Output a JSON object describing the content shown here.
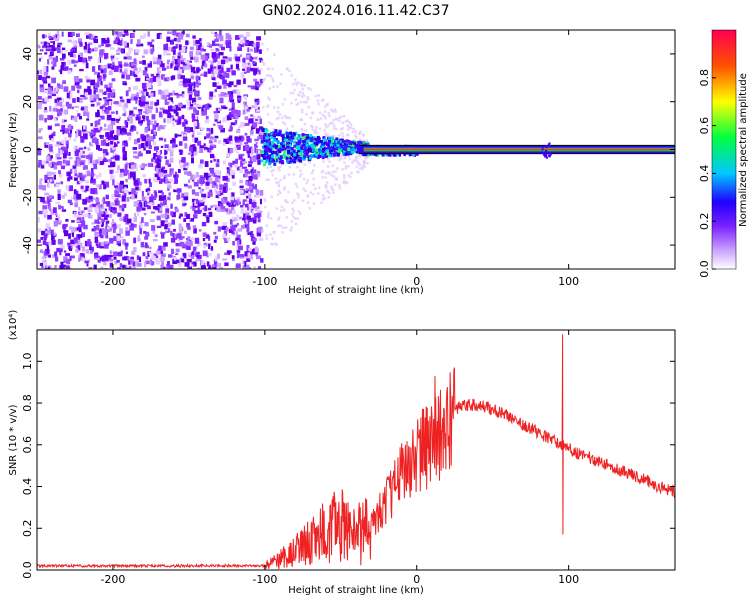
{
  "figure_title": "GN02.2024.016.11.42.C37",
  "chart_data": [
    {
      "type": "heatmap",
      "title": "GN02.2024.016.11.42.C37",
      "xlabel": "Height of straight line (km)",
      "ylabel": "Frequency (Hz)",
      "xlim": [
        -250,
        170
      ],
      "ylim": [
        -50,
        50
      ],
      "xticks": [
        -200,
        -100,
        0,
        100
      ],
      "yticks": [
        -40,
        -20,
        0,
        20,
        40
      ],
      "colorbar": {
        "label": "Normalized spectral amplitude",
        "range": [
          0,
          1
        ],
        "ticks": [
          0.0,
          0.2,
          0.4,
          0.6,
          0.8
        ],
        "colormap": [
          "#ffffff",
          "#9a30ff",
          "#3a00ff",
          "#00c8ff",
          "#00ff40",
          "#ffff00",
          "#ff6000",
          "#ff0050"
        ]
      },
      "regions": [
        {
          "x_range": [
            -250,
            -103
          ],
          "f_range": [
            -50,
            50
          ],
          "amplitude": 0.15,
          "description_value": "broadband noise"
        },
        {
          "x_range": [
            -103,
            -35
          ],
          "f_range": [
            -6,
            10
          ],
          "amplitude": 0.45
        },
        {
          "x_range": [
            -35,
            170
          ],
          "f_range": [
            -1,
            1
          ],
          "amplitude": 0.9
        }
      ]
    },
    {
      "type": "line",
      "xlabel": "Height of straight line (km)",
      "ylabel": "SNR (10 * v/v)",
      "y_multiplier": "(x10⁴)",
      "xlim": [
        -250,
        170
      ],
      "ylim": [
        0,
        1.15
      ],
      "xticks": [
        -200,
        -100,
        0,
        100
      ],
      "yticks": [
        0.0,
        0.2,
        0.4,
        0.6,
        0.8,
        1.0
      ],
      "series": [
        {
          "color": "#ee2222",
          "x": [
            -250,
            -200,
            -150,
            -100,
            -90,
            -80,
            -70,
            -60,
            -50,
            -40,
            -30,
            -20,
            -10,
            0,
            10,
            15,
            20,
            25,
            30,
            40,
            50,
            60,
            70,
            80,
            90,
            95,
            100,
            110,
            120,
            130,
            140,
            150,
            160,
            170
          ],
          "y": [
            0.02,
            0.02,
            0.02,
            0.02,
            0.05,
            0.09,
            0.14,
            0.18,
            0.22,
            0.17,
            0.2,
            0.33,
            0.47,
            0.56,
            0.6,
            0.64,
            0.7,
            0.76,
            0.79,
            0.79,
            0.77,
            0.74,
            0.7,
            0.66,
            0.62,
            0.6,
            0.58,
            0.55,
            0.52,
            0.49,
            0.46,
            0.43,
            0.4,
            0.37
          ]
        }
      ],
      "spikes": [
        {
          "x": 12,
          "y": 0.93
        },
        {
          "x": 96,
          "y": 1.13,
          "min": 0.17
        }
      ]
    }
  ]
}
